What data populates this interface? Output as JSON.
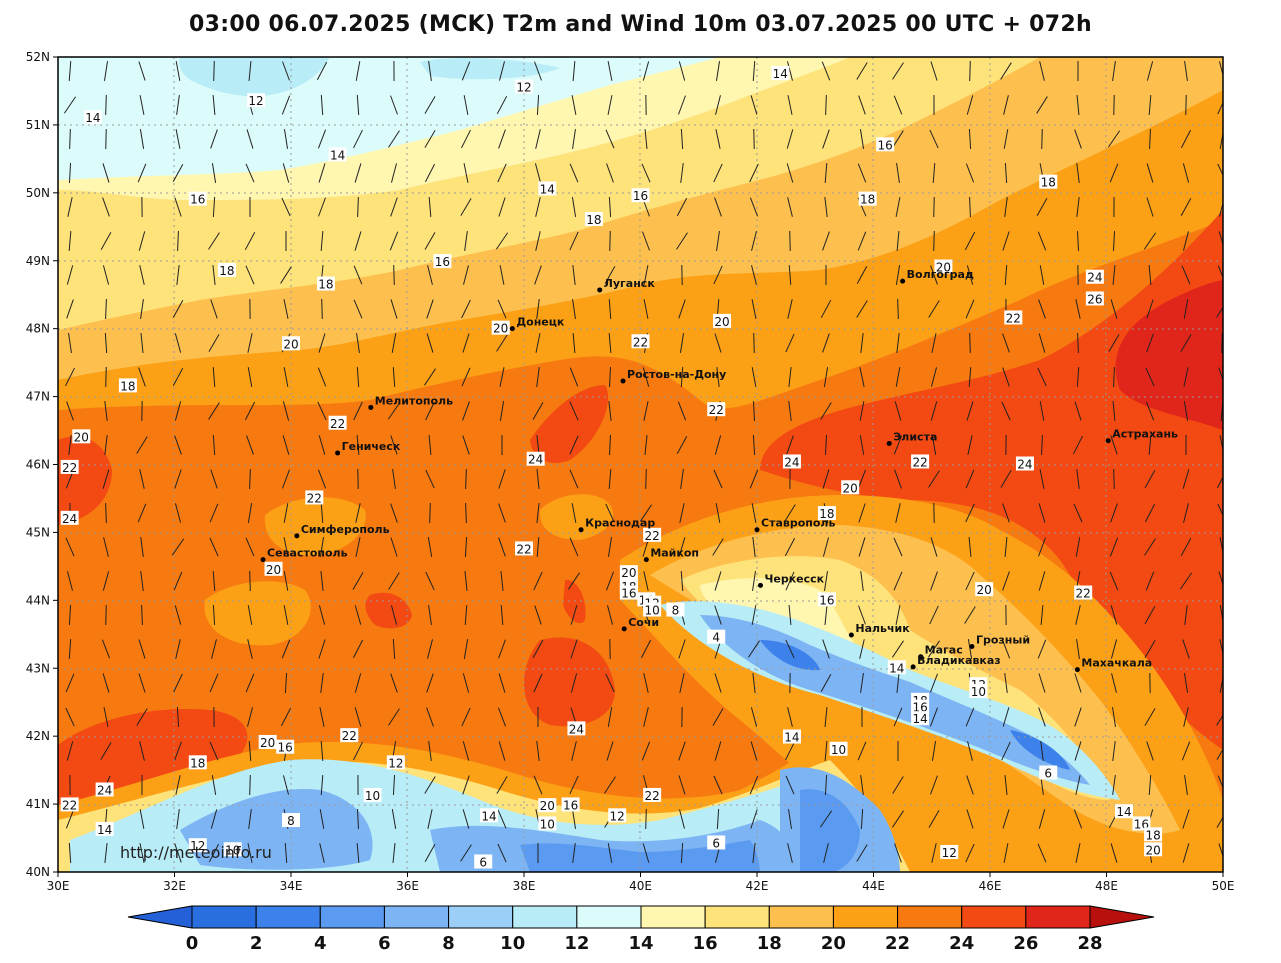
{
  "title": "03:00 06.07.2025 (MCK) T2m and Wind 10m 03.07.2025 00 UTC + 072h",
  "watermark": "http://meteoinfo.ru",
  "axes": {
    "lat_labels": [
      "52N",
      "51N",
      "50N",
      "49N",
      "48N",
      "47N",
      "46N",
      "45N",
      "44N",
      "43N",
      "42N",
      "41N",
      "40N"
    ],
    "lon_labels": [
      "30E",
      "32E",
      "34E",
      "36E",
      "38E",
      "40E",
      "42E",
      "44E",
      "46E",
      "48E",
      "50E"
    ],
    "lat_range": [
      40,
      52
    ],
    "lon_range": [
      30,
      50
    ]
  },
  "colorbar": {
    "ticks": [
      "0",
      "2",
      "4",
      "6",
      "8",
      "10",
      "12",
      "14",
      "16",
      "18",
      "20",
      "22",
      "24",
      "26",
      "28"
    ],
    "colors": [
      "#2a6fe0",
      "#3c82ea",
      "#5a9af0",
      "#7db4f4",
      "#9ccff7",
      "#b8ecf6",
      "#dcfbfb",
      "#fff6b0",
      "#fee27a",
      "#fdc04e",
      "#fca016",
      "#f77a10",
      "#f24a12",
      "#e0261a",
      "#b8100c",
      "#2460d8"
    ]
  },
  "cities": [
    {
      "name": "Луганск",
      "lon": 39.3,
      "lat": 48.57
    },
    {
      "name": "Донецк",
      "lon": 37.8,
      "lat": 48.0
    },
    {
      "name": "Волгоград",
      "lon": 44.5,
      "lat": 48.7
    },
    {
      "name": "Ростов-на-Дону",
      "lon": 39.7,
      "lat": 47.23
    },
    {
      "name": "Мелитополь",
      "lon": 35.37,
      "lat": 46.84
    },
    {
      "name": "Геническ",
      "lon": 34.8,
      "lat": 46.17
    },
    {
      "name": "Элиста",
      "lon": 44.27,
      "lat": 46.31
    },
    {
      "name": "Астрахань",
      "lon": 48.03,
      "lat": 46.35
    },
    {
      "name": "Симферополь",
      "lon": 34.1,
      "lat": 44.95
    },
    {
      "name": "Краснодар",
      "lon": 38.98,
      "lat": 45.04
    },
    {
      "name": "Ставрополь",
      "lon": 42.0,
      "lat": 45.04
    },
    {
      "name": "Севастополь",
      "lon": 33.52,
      "lat": 44.6
    },
    {
      "name": "Майкоп",
      "lon": 40.1,
      "lat": 44.6
    },
    {
      "name": "Черкесск",
      "lon": 42.06,
      "lat": 44.22
    },
    {
      "name": "Сочи",
      "lon": 39.72,
      "lat": 43.58
    },
    {
      "name": "Нальчик",
      "lon": 43.62,
      "lat": 43.49
    },
    {
      "name": "Магас",
      "lon": 44.81,
      "lat": 43.17
    },
    {
      "name": "Грозный",
      "lon": 45.69,
      "lat": 43.32
    },
    {
      "name": "Владикавказ",
      "lon": 44.68,
      "lat": 43.02
    },
    {
      "name": "Махачкала",
      "lon": 47.5,
      "lat": 42.98
    }
  ],
  "contour_labels": [
    {
      "t": "14",
      "lon": 30.6,
      "lat": 51.1
    },
    {
      "t": "12",
      "lon": 33.4,
      "lat": 51.35
    },
    {
      "t": "12",
      "lon": 38.0,
      "lat": 51.55
    },
    {
      "t": "14",
      "lon": 42.4,
      "lat": 51.75
    },
    {
      "t": "14",
      "lon": 34.8,
      "lat": 50.55
    },
    {
      "t": "14",
      "lon": 38.4,
      "lat": 50.05
    },
    {
      "t": "16",
      "lon": 32.4,
      "lat": 49.9
    },
    {
      "t": "16",
      "lon": 40.0,
      "lat": 49.95
    },
    {
      "t": "16",
      "lon": 44.2,
      "lat": 50.7
    },
    {
      "t": "18",
      "lon": 32.9,
      "lat": 48.85
    },
    {
      "t": "18",
      "lon": 34.6,
      "lat": 48.65
    },
    {
      "t": "18",
      "lon": 39.2,
      "lat": 49.6
    },
    {
      "t": "18",
      "lon": 43.9,
      "lat": 49.9
    },
    {
      "t": "18",
      "lon": 47.0,
      "lat": 50.15
    },
    {
      "t": "16",
      "lon": 36.6,
      "lat": 48.98
    },
    {
      "t": "20",
      "lon": 34.0,
      "lat": 47.77
    },
    {
      "t": "20",
      "lon": 41.4,
      "lat": 48.1
    },
    {
      "t": "20",
      "lon": 45.2,
      "lat": 48.9
    },
    {
      "t": "20",
      "lon": 30.4,
      "lat": 46.4
    },
    {
      "t": "20",
      "lon": 37.6,
      "lat": 48.0
    },
    {
      "t": "22",
      "lon": 30.2,
      "lat": 45.95
    },
    {
      "t": "24",
      "lon": 30.2,
      "lat": 45.2
    },
    {
      "t": "22",
      "lon": 34.8,
      "lat": 46.6
    },
    {
      "t": "22",
      "lon": 40.0,
      "lat": 47.8
    },
    {
      "t": "22",
      "lon": 41.3,
      "lat": 46.8
    },
    {
      "t": "22",
      "lon": 46.4,
      "lat": 48.15
    },
    {
      "t": "24",
      "lon": 47.8,
      "lat": 48.75
    },
    {
      "t": "26",
      "lon": 47.8,
      "lat": 48.43
    },
    {
      "t": "18",
      "lon": 31.2,
      "lat": 47.15
    },
    {
      "t": "24",
      "lon": 38.2,
      "lat": 46.07
    },
    {
      "t": "24",
      "lon": 42.6,
      "lat": 46.03
    },
    {
      "t": "22",
      "lon": 44.8,
      "lat": 46.03
    },
    {
      "t": "24",
      "lon": 46.6,
      "lat": 46.0
    },
    {
      "t": "20",
      "lon": 43.6,
      "lat": 45.65
    },
    {
      "t": "18",
      "lon": 43.2,
      "lat": 45.27
    },
    {
      "t": "22",
      "lon": 34.4,
      "lat": 45.5
    },
    {
      "t": "22",
      "lon": 38.0,
      "lat": 44.75
    },
    {
      "t": "22",
      "lon": 40.2,
      "lat": 44.95
    },
    {
      "t": "20",
      "lon": 33.7,
      "lat": 44.45
    },
    {
      "t": "20",
      "lon": 39.8,
      "lat": 44.4
    },
    {
      "t": "18",
      "lon": 39.8,
      "lat": 44.2
    },
    {
      "t": "16",
      "lon": 39.8,
      "lat": 44.1
    },
    {
      "t": "14",
      "lon": 40.1,
      "lat": 44.0
    },
    {
      "t": "12",
      "lon": 40.2,
      "lat": 43.95
    },
    {
      "t": "10",
      "lon": 40.2,
      "lat": 43.85
    },
    {
      "t": "8",
      "lon": 40.6,
      "lat": 43.85
    },
    {
      "t": "16",
      "lon": 43.2,
      "lat": 44.0
    },
    {
      "t": "4",
      "lon": 41.3,
      "lat": 43.45
    },
    {
      "t": "20",
      "lon": 45.9,
      "lat": 44.15
    },
    {
      "t": "22",
      "lon": 47.6,
      "lat": 44.1
    },
    {
      "t": "14",
      "lon": 44.4,
      "lat": 43.0
    },
    {
      "t": "12",
      "lon": 45.8,
      "lat": 42.75
    },
    {
      "t": "10",
      "lon": 45.8,
      "lat": 42.65
    },
    {
      "t": "18",
      "lon": 44.8,
      "lat": 42.52
    },
    {
      "t": "16",
      "lon": 44.8,
      "lat": 42.42
    },
    {
      "t": "14",
      "lon": 44.8,
      "lat": 42.25
    },
    {
      "t": "24",
      "lon": 38.9,
      "lat": 42.1
    },
    {
      "t": "22",
      "lon": 35.0,
      "lat": 42.0
    },
    {
      "t": "20",
      "lon": 33.6,
      "lat": 41.9
    },
    {
      "t": "16",
      "lon": 33.9,
      "lat": 41.83
    },
    {
      "t": "18",
      "lon": 32.4,
      "lat": 41.6
    },
    {
      "t": "12",
      "lon": 35.8,
      "lat": 41.6
    },
    {
      "t": "24",
      "lon": 30.8,
      "lat": 41.2
    },
    {
      "t": "22",
      "lon": 30.2,
      "lat": 40.98
    },
    {
      "t": "14",
      "lon": 30.8,
      "lat": 40.62
    },
    {
      "t": "10",
      "lon": 35.4,
      "lat": 41.12
    },
    {
      "t": "8",
      "lon": 34.0,
      "lat": 40.75
    },
    {
      "t": "14",
      "lon": 37.4,
      "lat": 40.82
    },
    {
      "t": "20",
      "lon": 38.4,
      "lat": 40.97
    },
    {
      "t": "10",
      "lon": 38.4,
      "lat": 40.7
    },
    {
      "t": "16",
      "lon": 38.8,
      "lat": 40.98
    },
    {
      "t": "12",
      "lon": 39.6,
      "lat": 40.82
    },
    {
      "t": "22",
      "lon": 40.2,
      "lat": 41.12
    },
    {
      "t": "14",
      "lon": 42.6,
      "lat": 41.98
    },
    {
      "t": "10",
      "lon": 43.4,
      "lat": 41.8
    },
    {
      "t": "6",
      "lon": 41.3,
      "lat": 40.42
    },
    {
      "t": "6",
      "lon": 37.3,
      "lat": 40.14
    },
    {
      "t": "12",
      "lon": 32.4,
      "lat": 40.38
    },
    {
      "t": "10",
      "lon": 33.0,
      "lat": 40.32
    },
    {
      "t": "6",
      "lon": 47.0,
      "lat": 41.45
    },
    {
      "t": "14",
      "lon": 48.3,
      "lat": 40.88
    },
    {
      "t": "16",
      "lon": 48.6,
      "lat": 40.7
    },
    {
      "t": "18",
      "lon": 48.8,
      "lat": 40.54
    },
    {
      "t": "20",
      "lon": 48.8,
      "lat": 40.32
    },
    {
      "t": "12",
      "lon": 45.3,
      "lat": 40.28
    }
  ]
}
